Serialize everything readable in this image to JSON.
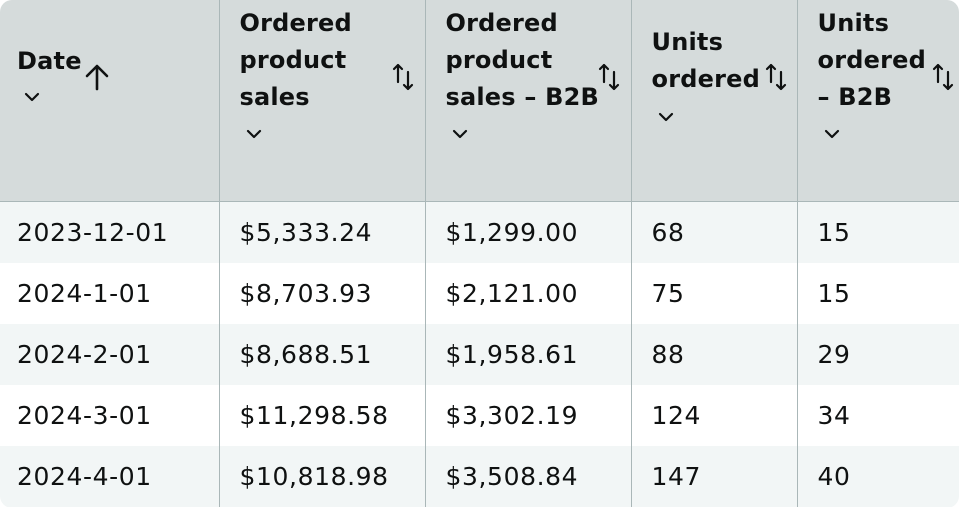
{
  "table": {
    "headers": [
      {
        "lines": [
          "Date"
        ],
        "sort": "ascending"
      },
      {
        "lines": [
          "Ordered",
          "product",
          "sales"
        ],
        "sort": "unsorted"
      },
      {
        "lines": [
          "Ordered",
          "product",
          "sales – B2B"
        ],
        "sort": "unsorted"
      },
      {
        "lines": [
          "Units",
          "ordered"
        ],
        "sort": "unsorted"
      },
      {
        "lines": [
          "Units",
          "ordered",
          "– B2B"
        ],
        "sort": "unsorted"
      }
    ],
    "rows": [
      {
        "date": "2023-12-01",
        "sales": "$5,333.24",
        "sales_b2b": "$1,299.00",
        "units": "68",
        "units_b2b": "15"
      },
      {
        "date": "2024-1-01",
        "sales": "$8,703.93",
        "sales_b2b": "$2,121.00",
        "units": "75",
        "units_b2b": "15"
      },
      {
        "date": "2024-2-01",
        "sales": "$8,688.51",
        "sales_b2b": "$1,958.61",
        "units": "88",
        "units_b2b": "29"
      },
      {
        "date": "2024-3-01",
        "sales": "$11,298.58",
        "sales_b2b": "$3,302.19",
        "units": "124",
        "units_b2b": "34"
      },
      {
        "date": "2024-4-01",
        "sales": "$10,818.98",
        "sales_b2b": "$3,508.84",
        "units": "147",
        "units_b2b": "40"
      }
    ]
  },
  "colors": {
    "header_bg": "#d5dbdb",
    "row_alt_bg": "#f2f6f6",
    "row_bg": "#ffffff",
    "border": "#aab7b8",
    "text": "#0f1111"
  },
  "icons": {
    "ascending": "arrow-up-icon",
    "unsorted": "sort-arrows-icon",
    "filter": "chevron-down-icon"
  }
}
